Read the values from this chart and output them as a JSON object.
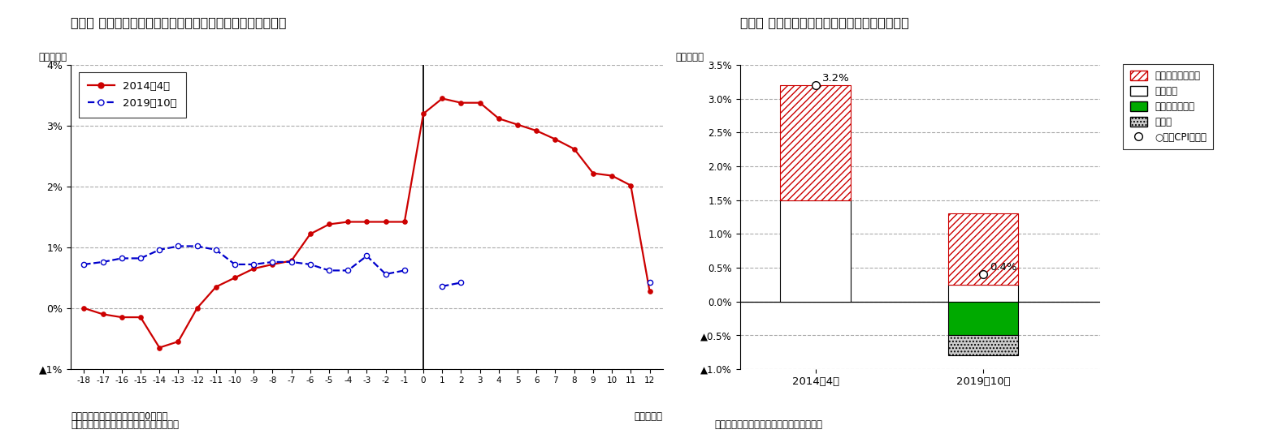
{
  "fig1_title": "図表１ 消費税率引き上げ前後の消費者物価（除く生鮮食品）",
  "fig2_title": "図表２ 消費税率引き上げ月の消費者物価上昇率",
  "fig1_ylabel": "（前年比）",
  "fig2_ylabel": "（前年比）",
  "fig1_xlabel_right": "（経過月）",
  "fig1_note1": "（注）消費税率引き上げ月＝0とした",
  "fig1_note2": "（資料）総務省統計局「消費者物価指数」",
  "fig2_note": "（資料）総務省統計局「消費者物価指数」",
  "x_ticks": [
    -18,
    -17,
    -16,
    -15,
    -14,
    -13,
    -12,
    -11,
    -10,
    -9,
    -8,
    -7,
    -6,
    -5,
    -4,
    -3,
    -2,
    -1,
    0,
    1,
    2,
    3,
    4,
    5,
    6,
    7,
    8,
    9,
    10,
    11,
    12
  ],
  "red_line": [
    0.0,
    -0.1,
    -0.15,
    -0.15,
    -0.65,
    -0.55,
    0.0,
    0.35,
    0.5,
    0.65,
    0.72,
    0.78,
    1.22,
    1.38,
    1.42,
    1.42,
    1.42,
    1.42,
    3.2,
    3.45,
    3.38,
    3.38,
    3.12,
    3.02,
    2.92,
    2.78,
    2.62,
    2.22,
    2.18,
    2.02,
    0.28
  ],
  "blue_line": [
    0.72,
    0.76,
    0.82,
    0.82,
    0.96,
    1.02,
    1.02,
    0.96,
    0.72,
    0.72,
    0.76,
    0.76,
    0.72,
    0.62,
    0.62,
    0.86,
    0.56,
    0.62,
    null,
    0.36,
    0.42,
    null,
    null,
    null,
    null,
    null,
    null,
    null,
    null,
    null,
    0.42
  ],
  "fig1_ylim": [
    -1.0,
    4.0
  ],
  "fig1_yticks": [
    -1.0,
    0.0,
    1.0,
    2.0,
    3.0,
    4.0
  ],
  "fig1_ytick_labels": [
    "▲1%",
    "0%",
    "1%",
    "2%",
    "3%",
    "4%"
  ],
  "fig2_ylim": [
    -1.0,
    3.5
  ],
  "fig2_yticks": [
    -1.0,
    -0.5,
    0.0,
    0.5,
    1.0,
    1.5,
    2.0,
    2.5,
    3.0,
    3.5
  ],
  "fig2_ytick_labels": [
    "▲1.0%",
    "▲0.5%",
    "0.0%",
    "0.5%",
    "1.0%",
    "1.5%",
    "2.0%",
    "2.5%",
    "3.0%",
    "3.5%"
  ],
  "bar_categories": [
    "2014年4月",
    "2019年10月"
  ],
  "bar_cpi_marker": [
    3.2,
    0.4
  ],
  "bar_cpi_label": [
    "3.2%",
    "0.4%"
  ],
  "color_red": "#cc0000",
  "color_blue": "#0000cc",
  "color_hatch_red": "#cc0000",
  "color_green": "#00aa00",
  "color_white": "#ffffff",
  "color_gray_dot": "#cccccc",
  "background": "#ffffff",
  "grid_color": "#aaaaaa",
  "legend1_labels": [
    "2014年4月",
    "2019年10月"
  ],
  "legend2_labels": [
    "消費税率引き上げ",
    "軽減税率",
    "幼児教育無償化",
    "その他",
    "○コアCPI上昇率"
  ]
}
